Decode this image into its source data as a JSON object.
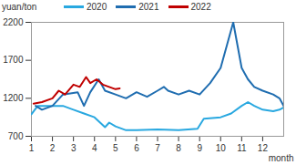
{
  "chart_data": {
    "type": "line",
    "y_label": "yuan/ton",
    "x_label": "month",
    "xlim": [
      1,
      13
    ],
    "xticks": [
      1,
      2,
      3,
      4,
      5,
      6,
      7,
      8,
      9,
      10,
      11,
      12
    ],
    "ylim": [
      700,
      2200
    ],
    "yticks": [
      700,
      1200,
      1700,
      2200
    ],
    "grid": false,
    "legend": "top",
    "series": [
      {
        "name": "2020",
        "color": "#29a8e0",
        "x": [
          1,
          1.3,
          2,
          2.5,
          3,
          3.5,
          4,
          4.5,
          4.7,
          5,
          5.5,
          6,
          7,
          8,
          8.9,
          9.2,
          10,
          10.5,
          11,
          11.3,
          11.6,
          12,
          12.5,
          12.8,
          13
        ],
        "values": [
          990,
          1100,
          1100,
          1100,
          1050,
          1000,
          950,
          820,
          880,
          830,
          780,
          780,
          790,
          780,
          800,
          930,
          950,
          1000,
          1100,
          1150,
          1100,
          1050,
          1030,
          1050,
          1080
        ]
      },
      {
        "name": "2021",
        "color": "#1f6db0",
        "x": [
          1.2,
          1.5,
          2,
          2.5,
          3.2,
          3.5,
          3.8,
          4.2,
          4.5,
          5,
          5.5,
          6,
          6.5,
          7,
          7.3,
          7.5,
          8,
          8.5,
          9,
          9.5,
          10,
          10.3,
          10.6,
          10.8,
          11,
          11.3,
          11.6,
          12,
          12.5,
          12.8,
          13
        ],
        "values": [
          1100,
          1050,
          1100,
          1250,
          1280,
          1100,
          1280,
          1450,
          1300,
          1250,
          1200,
          1280,
          1220,
          1300,
          1350,
          1300,
          1250,
          1300,
          1250,
          1400,
          1600,
          1900,
          2200,
          1900,
          1600,
          1450,
          1350,
          1300,
          1250,
          1200,
          1100
        ]
      },
      {
        "name": "2022",
        "color": "#c00000",
        "x": [
          1.1,
          1.5,
          2,
          2.3,
          2.6,
          3,
          3.3,
          3.6,
          3.8,
          4.1,
          4.4,
          4.7,
          5,
          5.2
        ],
        "values": [
          1130,
          1150,
          1200,
          1300,
          1250,
          1380,
          1350,
          1480,
          1400,
          1450,
          1380,
          1350,
          1320,
          1330
        ]
      }
    ]
  }
}
